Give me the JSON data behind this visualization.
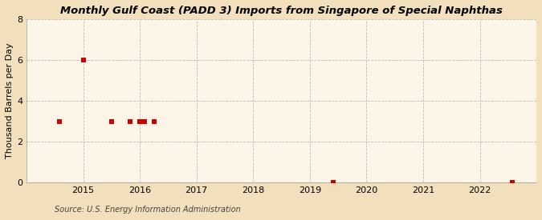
{
  "title": "Monthly Gulf Coast (PADD 3) Imports from Singapore of Special Naphthas",
  "ylabel": "Thousand Barrels per Day",
  "source": "Source: U.S. Energy Information Administration",
  "background_color": "#f2e0bc",
  "plot_bg_color": "#fdf6e8",
  "marker_color": "#cc0000",
  "marker_size": 4,
  "data_x": [
    2014.58,
    2015.0,
    2015.5,
    2015.83,
    2016.0,
    2016.08,
    2016.25,
    2019.42,
    2022.58
  ],
  "data_y": [
    3,
    6,
    3,
    3,
    3,
    3,
    3,
    0.02,
    0.02
  ],
  "xlim": [
    2014.0,
    2023.0
  ],
  "ylim": [
    0,
    8
  ],
  "yticks": [
    0,
    2,
    4,
    6,
    8
  ],
  "xticks": [
    2015,
    2016,
    2017,
    2018,
    2019,
    2020,
    2021,
    2022
  ],
  "grid_color": "#bbbbbb",
  "grid_style": "--",
  "title_fontsize": 9.5,
  "axis_fontsize": 8,
  "tick_fontsize": 8,
  "source_fontsize": 7
}
